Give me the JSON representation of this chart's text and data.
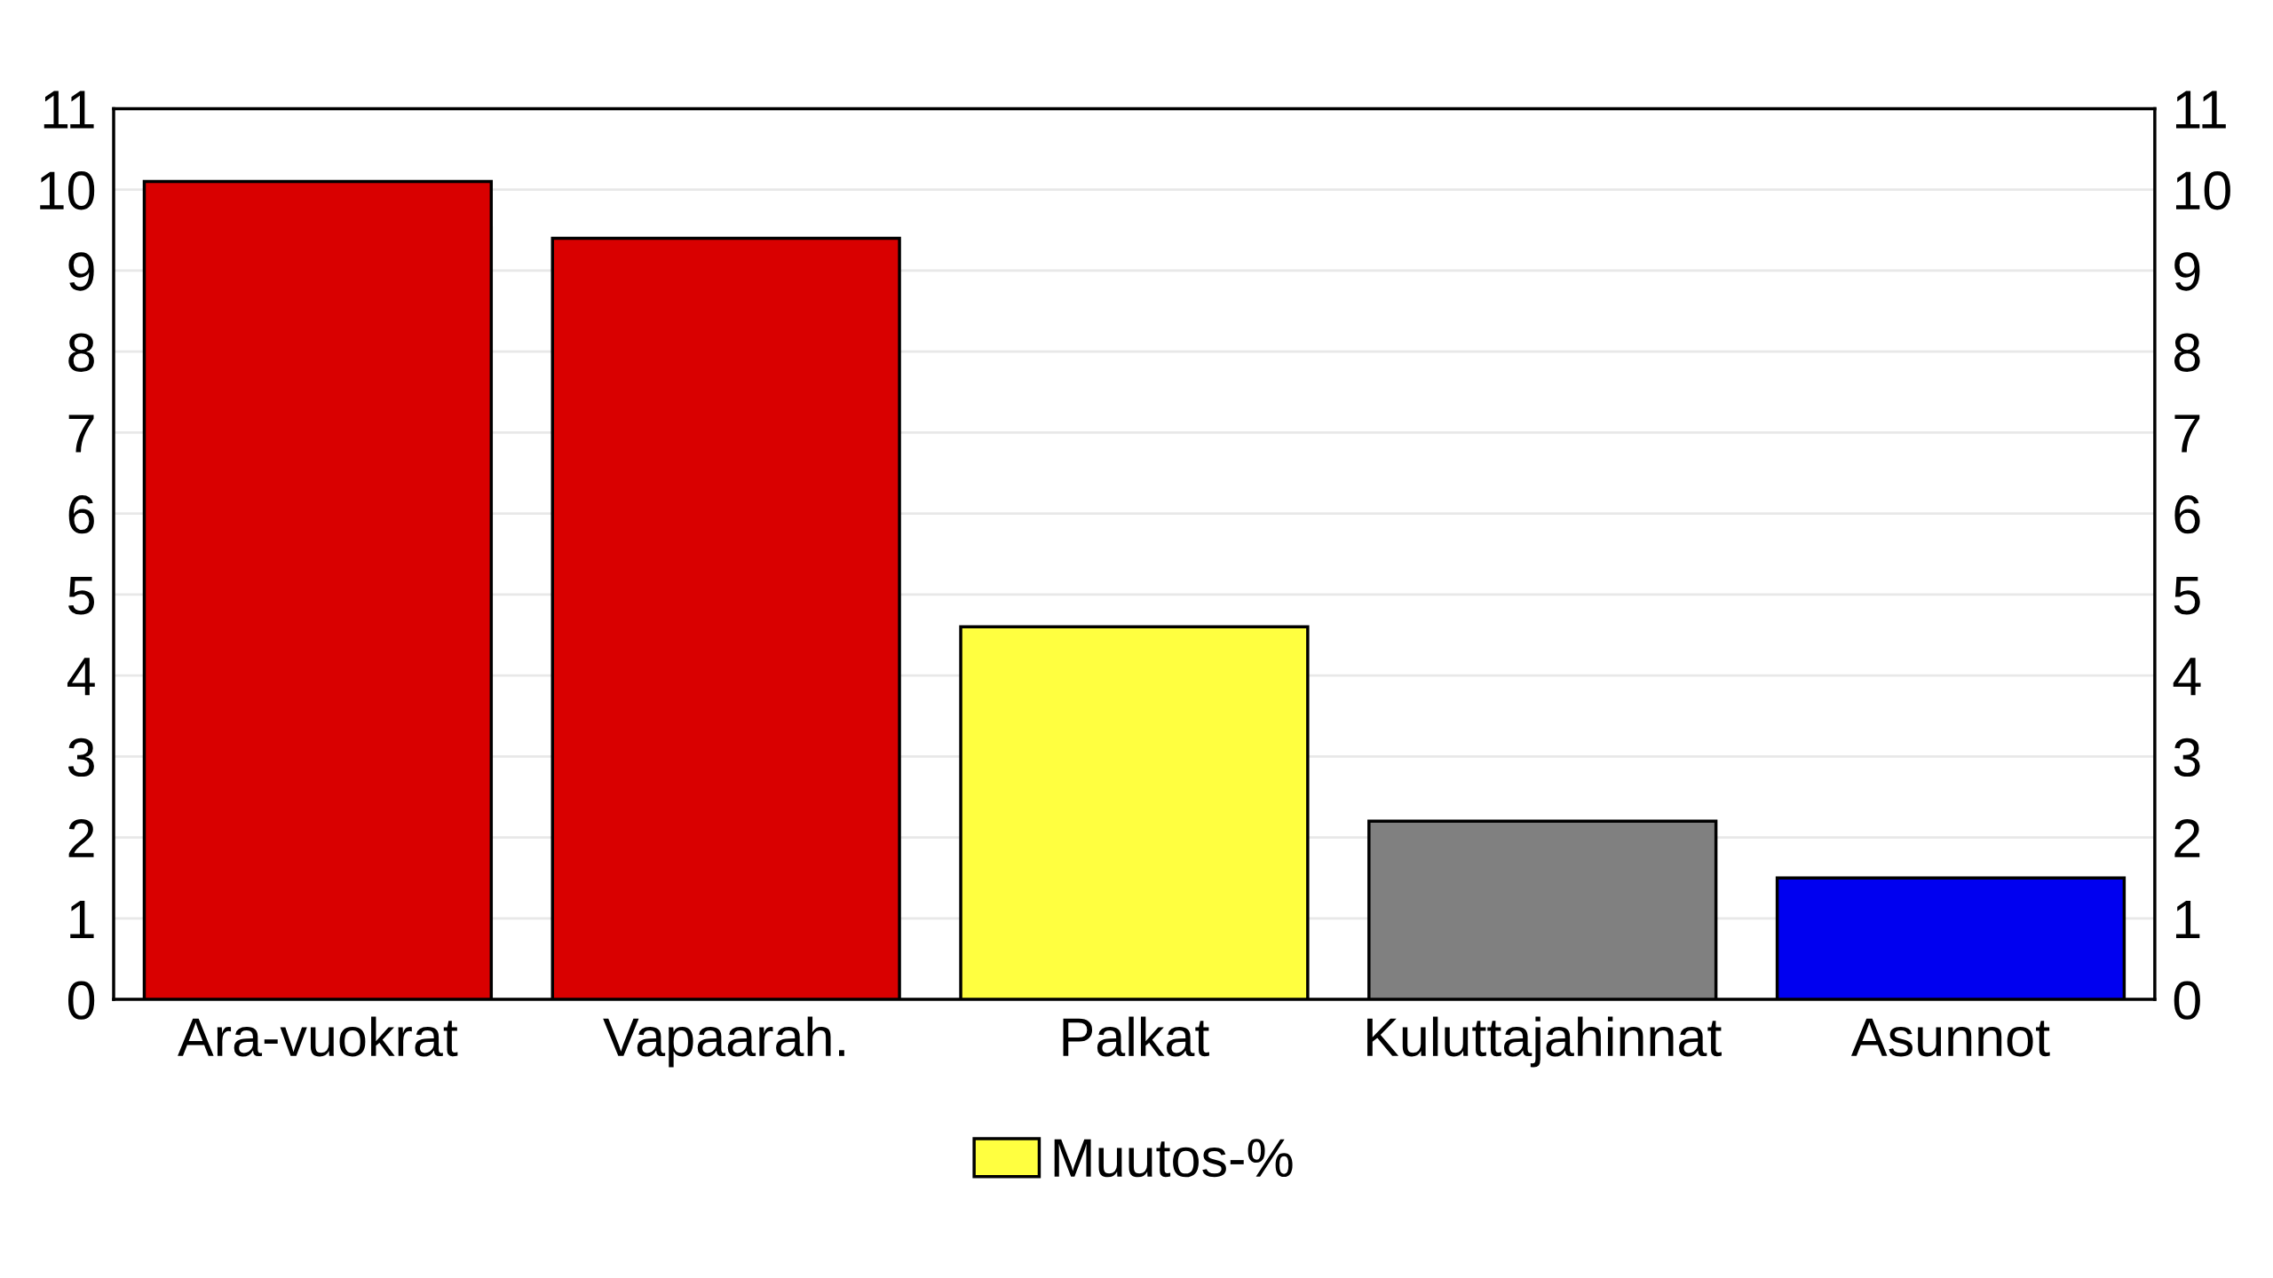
{
  "chart_data": {
    "type": "bar",
    "categories": [
      "Ara-vuokrat",
      "Vapaarah.",
      "Palkat",
      "Kuluttajahinnat",
      "Asunnot"
    ],
    "series": [
      {
        "name": "Muutos-%",
        "color": "#ffff40",
        "colors": [
          "#d90000",
          "#d90000",
          "#ffff40",
          "#808080",
          "#0000f0"
        ],
        "values": [
          10.1,
          9.4,
          4.6,
          2.2,
          1.5
        ]
      }
    ],
    "ylim": [
      0,
      11
    ],
    "yticks": [
      0,
      1,
      2,
      3,
      4,
      5,
      6,
      7,
      8,
      9,
      10,
      11
    ],
    "y2lim": [
      0,
      11
    ],
    "y2ticks": [
      0,
      1,
      2,
      3,
      4,
      5,
      6,
      7,
      8,
      9,
      10,
      11
    ],
    "grid": "y",
    "legend": "bottom"
  }
}
